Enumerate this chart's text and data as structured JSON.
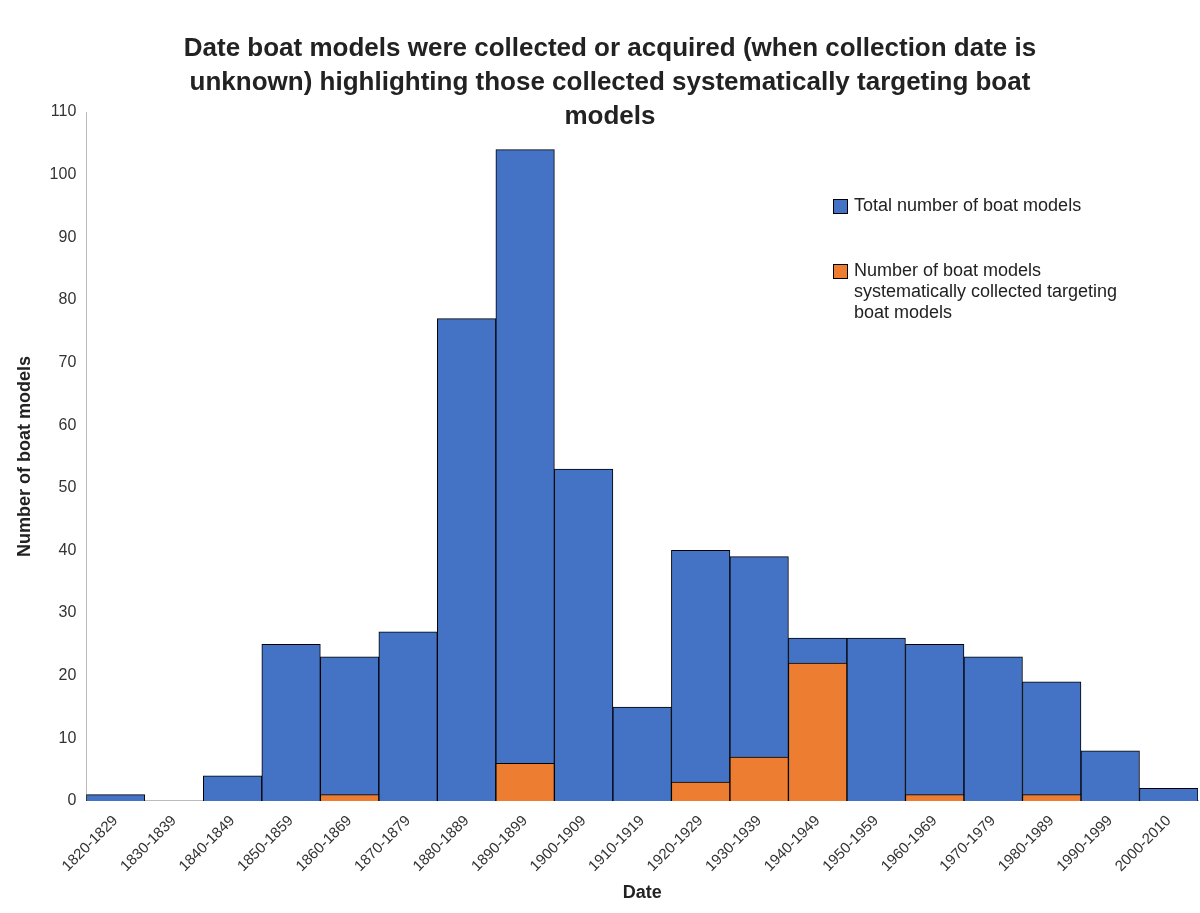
{
  "chart_data": {
    "type": "bar",
    "title": "Date boat models were collected or acquired (when collection date is unknown) highlighting those collected systematically targeting boat models",
    "xlabel": "Date",
    "ylabel": "Number of boat models",
    "categories": [
      "1820-1829",
      "1830-1839",
      "1840-1849",
      "1850-1859",
      "1860-1869",
      "1870-1879",
      "1880-1889",
      "1890-1899",
      "1900-1909",
      "1910-1919",
      "1920-1929",
      "1930-1939",
      "1940-1949",
      "1950-1959",
      "1960-1969",
      "1970-1979",
      "1980-1989",
      "1990-1999",
      "2000-2010"
    ],
    "series": [
      {
        "name": "Total number of boat models",
        "color": "#4472c4",
        "values": [
          1,
          0,
          4,
          25,
          23,
          27,
          77,
          104,
          53,
          15,
          40,
          39,
          26,
          26,
          25,
          23,
          19,
          8,
          2
        ]
      },
      {
        "name": "Number of boat models systematically collected targeting boat models",
        "color": "#ed7d31",
        "values": [
          0,
          0,
          0,
          0,
          1,
          0,
          0,
          6,
          0,
          0,
          3,
          7,
          22,
          0,
          1,
          0,
          1,
          0,
          0
        ]
      }
    ],
    "ylim": [
      0,
      110
    ],
    "yticks": [
      0,
      10,
      20,
      30,
      40,
      50,
      60,
      70,
      80,
      90,
      100,
      110
    ],
    "grid": false,
    "legend": "top right"
  }
}
